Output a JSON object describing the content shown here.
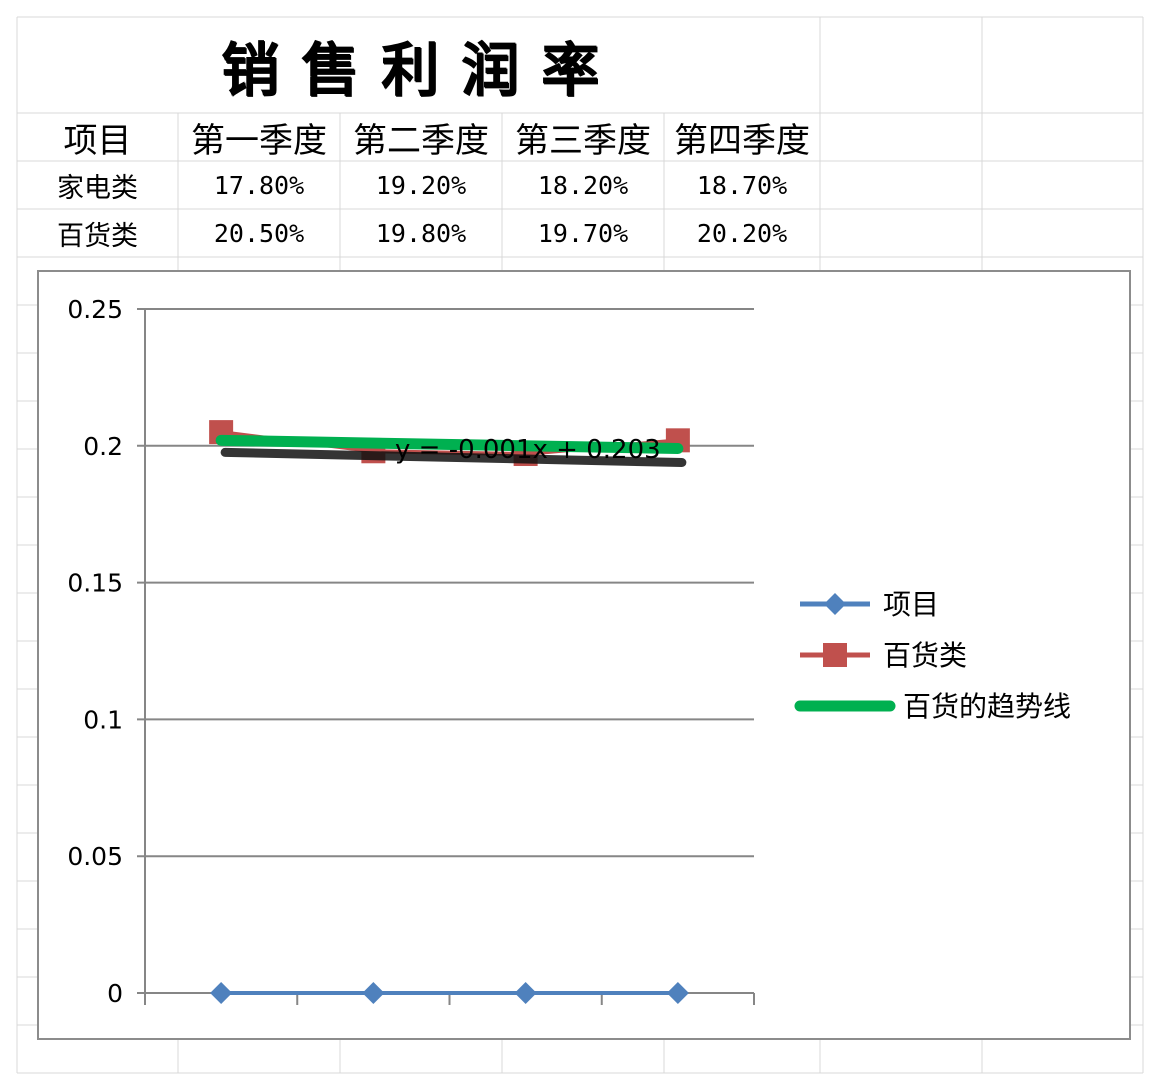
{
  "sheet": {
    "title": "销售利润率",
    "header": [
      "项目",
      "第一季度",
      "第二季度",
      "第三季度",
      "第四季度"
    ],
    "rows": [
      {
        "label": "家电类",
        "values": [
          "17.80%",
          "19.20%",
          "18.20%",
          "18.70%"
        ]
      },
      {
        "label": "百货类",
        "values": [
          "20.50%",
          "19.80%",
          "19.70%",
          "20.20%"
        ]
      }
    ]
  },
  "chart_data": {
    "type": "line",
    "categories": [
      "",
      "",
      "",
      ""
    ],
    "ylim": [
      0,
      0.25
    ],
    "yticks": [
      "0.25",
      "0.2",
      "0.15",
      "0.1",
      "0.05",
      "0"
    ],
    "grid": true,
    "legend_position": "right",
    "series": [
      {
        "name": "项目",
        "values": [
          0,
          0,
          0,
          0
        ],
        "color": "#4f81bd",
        "marker": "diamond"
      },
      {
        "name": "百货类",
        "values": [
          0.205,
          0.198,
          0.197,
          0.202
        ],
        "color": "#c0504d",
        "marker": "square"
      }
    ],
    "trendline": {
      "name": "百货的趋势线",
      "equation": "y = -0.001x + 0.203",
      "slope": -0.001,
      "intercept": 0.203,
      "color": "#00b050"
    }
  }
}
